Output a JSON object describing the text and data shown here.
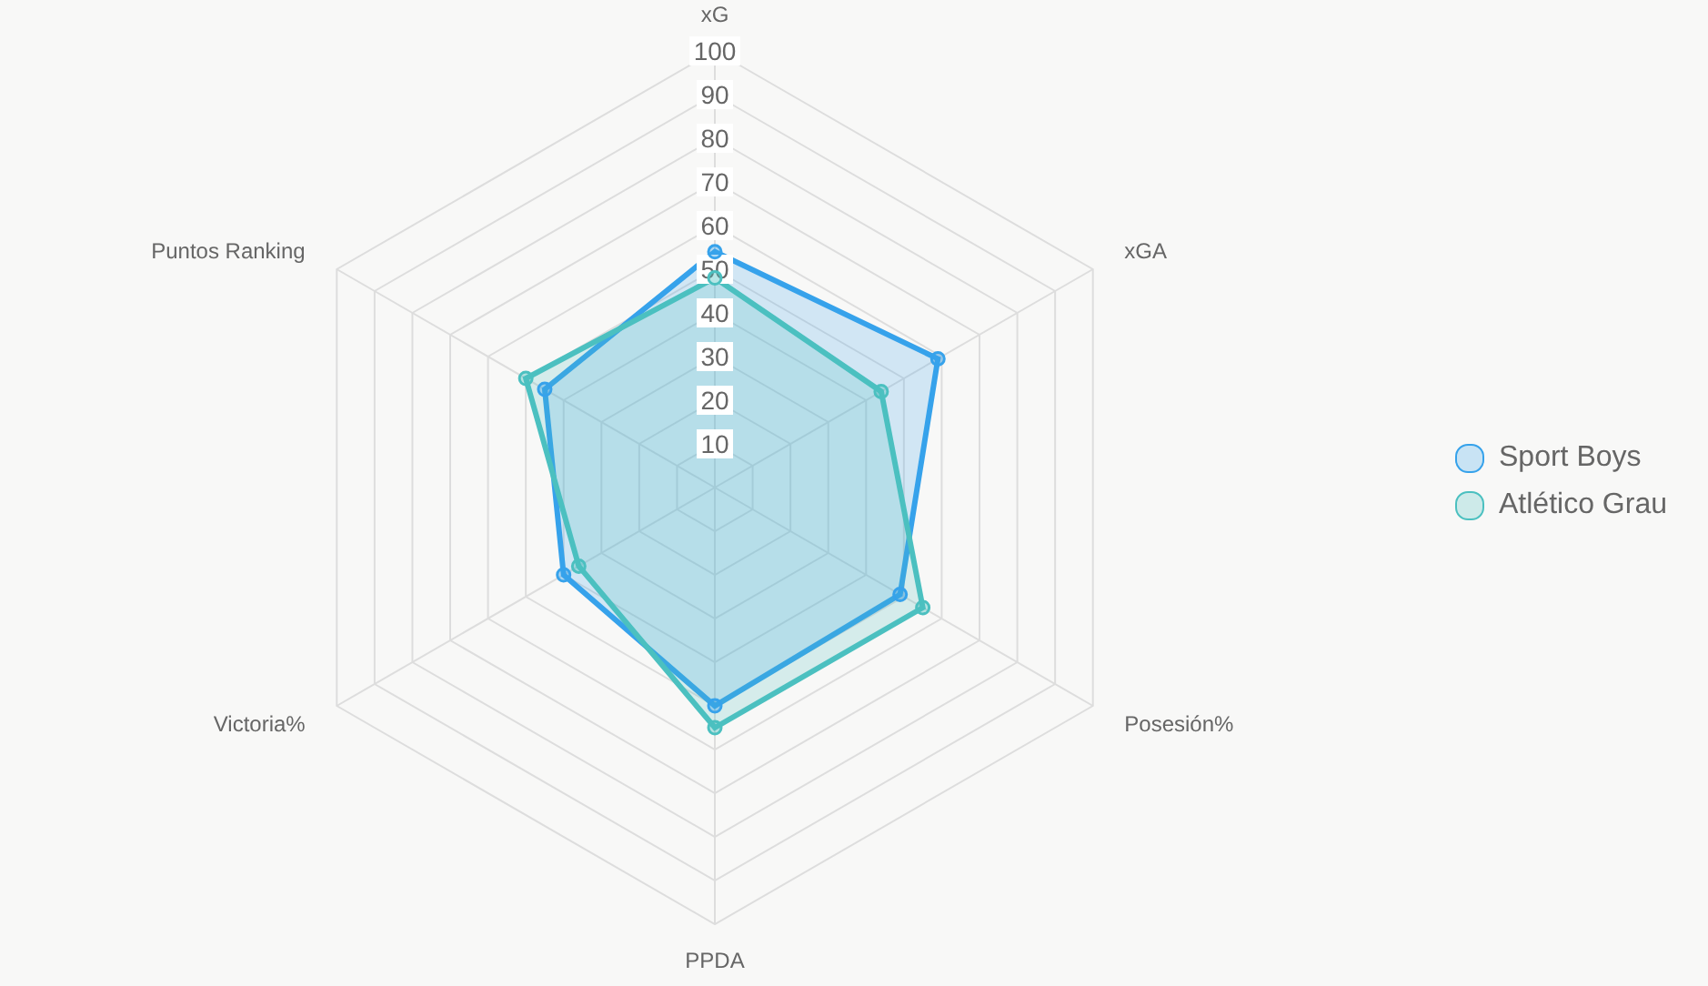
{
  "chart_data": {
    "type": "radar",
    "categories": [
      "xG",
      "xGA",
      "Posesión%",
      "PPDA",
      "Victoria%",
      "Puntos Ranking"
    ],
    "series": [
      {
        "name": "Sport Boys",
        "color": "#36a2eb",
        "values": [
          54,
          59,
          49,
          50,
          40,
          45
        ]
      },
      {
        "name": "Atlético Grau",
        "color": "#4bc0c0",
        "values": [
          48,
          44,
          55,
          55,
          36,
          50
        ]
      }
    ],
    "ylim": [
      0,
      100
    ],
    "yticks": [
      10,
      20,
      30,
      40,
      50,
      60,
      70,
      80,
      90,
      100
    ],
    "grid": true,
    "legend": "right",
    "marker": "circle"
  }
}
